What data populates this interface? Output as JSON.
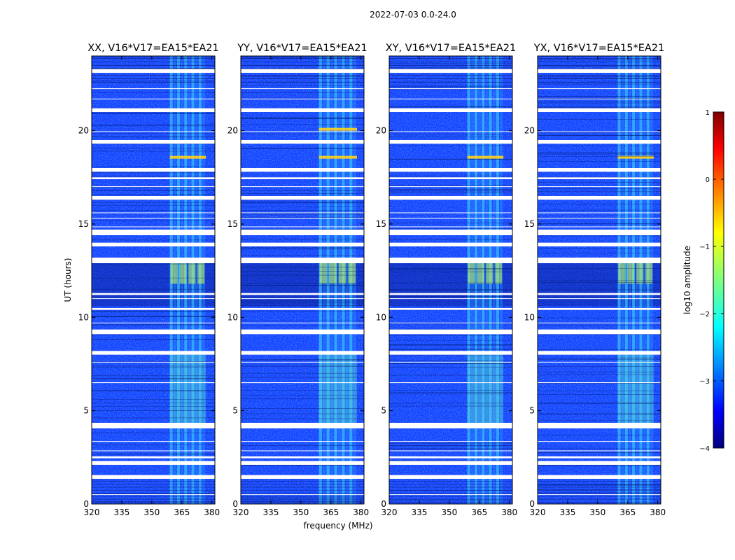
{
  "figure_title": "2022-07-03 0.0-24.0",
  "colors": {
    "background_base": "#1a3dff",
    "flag_white": "#ffffff",
    "axis": "#000000"
  },
  "chart_data": [
    {
      "type": "heatmap",
      "title": "XX, V16*V17=EA15*EA21",
      "xlabel": "",
      "ylabel": "UT (hours)",
      "xlim": [
        320,
        381.5
      ],
      "ylim": [
        0,
        24
      ],
      "xticks": [
        320,
        335,
        350,
        365,
        380
      ],
      "yticks": [
        0,
        5,
        10,
        15,
        20
      ],
      "rfi_band_mhz": [
        359,
        377
      ],
      "hot_rows_ut": [
        18.5
      ],
      "hot_band_hours": [
        11.8,
        13.0
      ]
    },
    {
      "type": "heatmap",
      "title": "YY, V16*V17=EA15*EA21",
      "xlabel": "frequency (MHz)",
      "ylabel": "",
      "xlim": [
        320,
        381.5
      ],
      "ylim": [
        0,
        24
      ],
      "xticks": [
        320,
        335,
        350,
        365,
        380
      ],
      "yticks": [
        0,
        5,
        10,
        15,
        20
      ],
      "rfi_band_mhz": [
        359,
        378
      ],
      "hot_rows_ut": [
        18.5,
        20.0
      ],
      "hot_band_hours": [
        11.8,
        13.0
      ]
    },
    {
      "type": "heatmap",
      "title": "XY, V16*V17=EA15*EA21",
      "xlabel": "",
      "ylabel": "",
      "xlim": [
        320,
        381.5
      ],
      "ylim": [
        0,
        24
      ],
      "xticks": [
        320,
        335,
        350,
        365,
        380
      ],
      "yticks": [
        0,
        5,
        10,
        15,
        20
      ],
      "rfi_band_mhz": [
        359,
        377
      ],
      "hot_rows_ut": [
        18.5
      ],
      "hot_band_hours": [
        11.8,
        13.0
      ]
    },
    {
      "type": "heatmap",
      "title": "YX, V16*V17=EA15*EA21",
      "xlabel": "",
      "ylabel": "",
      "xlim": [
        320,
        381.5
      ],
      "ylim": [
        0,
        24
      ],
      "xticks": [
        320,
        335,
        350,
        365,
        380
      ],
      "yticks": [
        0,
        5,
        10,
        15,
        20
      ],
      "rfi_band_mhz": [
        360,
        378
      ],
      "hot_rows_ut": [
        18.5
      ],
      "hot_band_hours": [
        11.8,
        13.0
      ]
    }
  ],
  "flagged_ut_ranges": [
    [
      1.35,
      1.55
    ],
    [
      2.1,
      2.3
    ],
    [
      2.45,
      2.55
    ],
    [
      4.05,
      4.35
    ],
    [
      8.0,
      8.2
    ],
    [
      9.1,
      9.35
    ],
    [
      10.4,
      10.5
    ],
    [
      11.2,
      11.3
    ],
    [
      12.9,
      13.2
    ],
    [
      13.8,
      14.0
    ],
    [
      14.4,
      14.7
    ],
    [
      16.3,
      16.5
    ],
    [
      17.4,
      17.5
    ],
    [
      17.8,
      18.0
    ],
    [
      19.3,
      19.5
    ],
    [
      21.0,
      21.2
    ],
    [
      23.1,
      23.3
    ]
  ],
  "colorbar": {
    "label": "log10 amplitude",
    "min": -4,
    "max": 1,
    "ticks": [
      -4,
      -3,
      -2,
      -1,
      0,
      1
    ],
    "tick_labels": [
      "−4",
      "−3",
      "−2",
      "−1",
      "0",
      "1"
    ],
    "colormap": "jet"
  }
}
